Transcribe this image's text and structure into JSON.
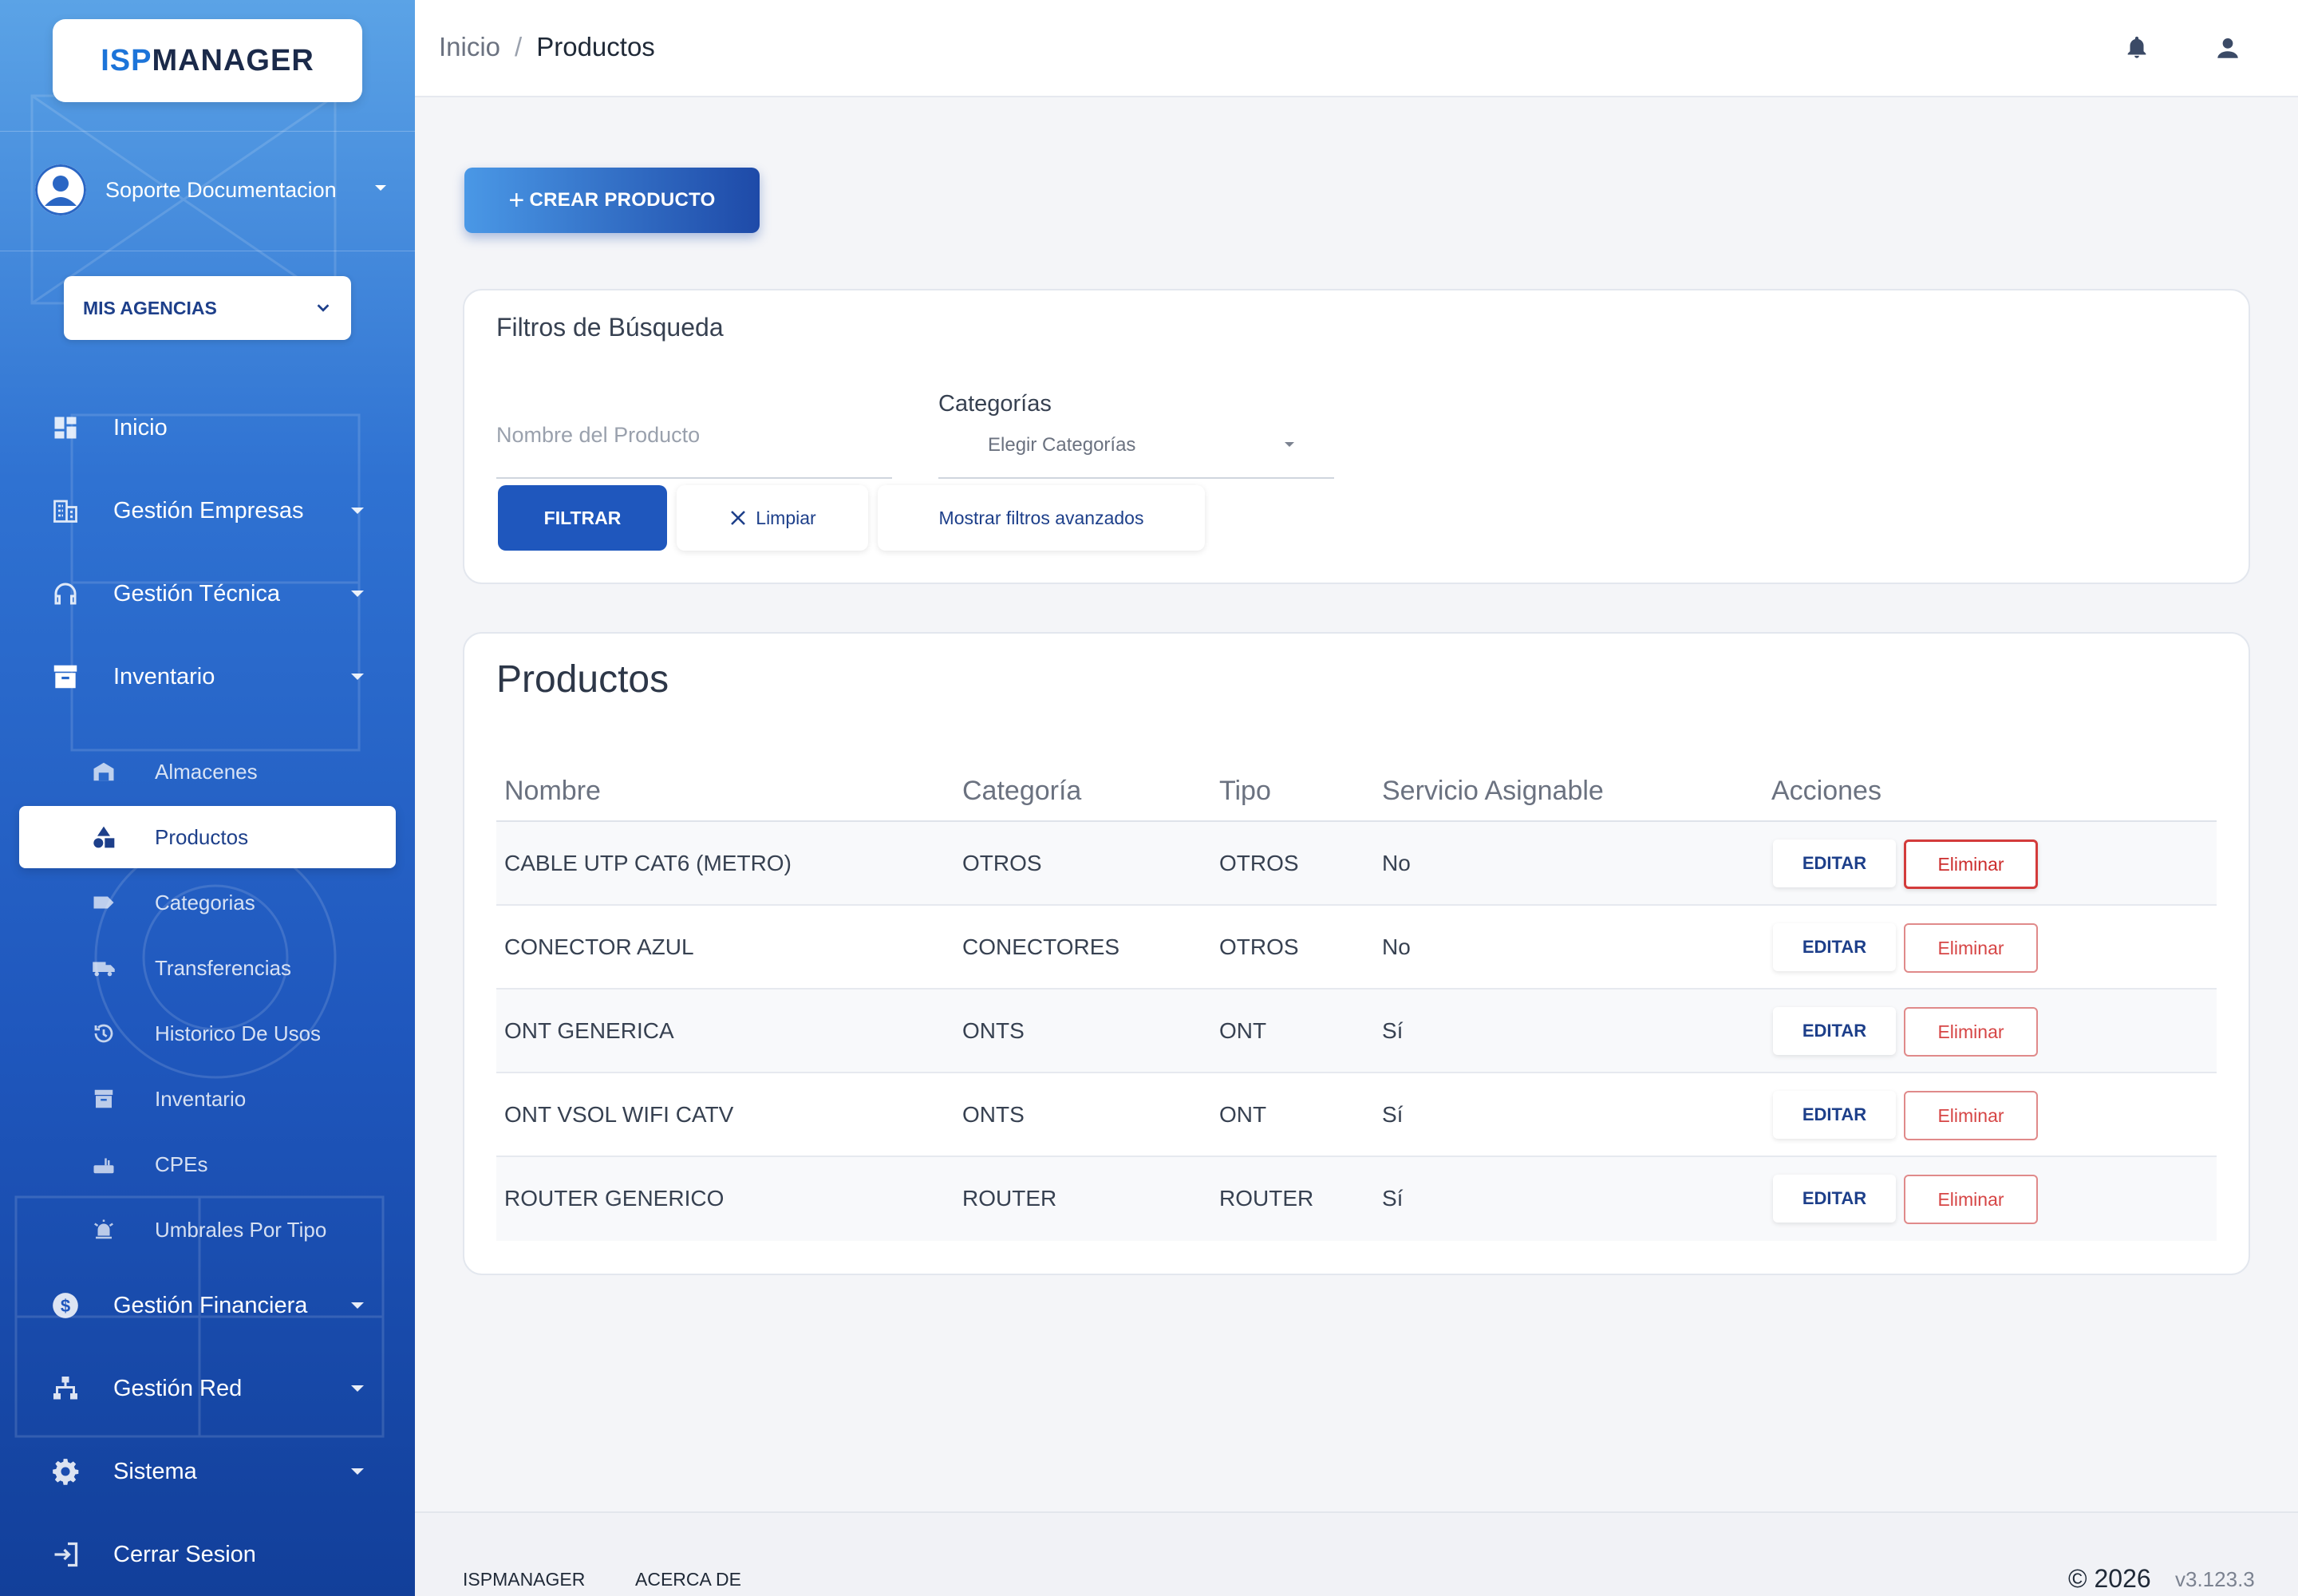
{
  "brand": {
    "logo_part1": "ISP",
    "logo_part2": "MANAGER"
  },
  "user": {
    "name": "Soporte Documentacion"
  },
  "agency": {
    "label": "MIS AGENCIAS"
  },
  "nav": {
    "inicio": "Inicio",
    "empresas": "Gestión Empresas",
    "tecnica": "Gestión Técnica",
    "inventario": "Inventario",
    "sub": {
      "almacenes": "Almacenes",
      "productos": "Productos",
      "categorias": "Categorias",
      "transferencias": "Transferencias",
      "historico": "Historico De Usos",
      "inventario": "Inventario",
      "cpes": "CPEs",
      "umbrales": "Umbrales Por Tipo"
    },
    "financiera": "Gestión Financiera",
    "red": "Gestión Red",
    "sistema": "Sistema",
    "logout": "Cerrar Sesion"
  },
  "header": {
    "crumb_home": "Inicio",
    "crumb_sep": "/",
    "crumb_current": "Productos"
  },
  "actions": {
    "create_label": "CREAR PRODUCTO"
  },
  "filters": {
    "title": "Filtros de Búsqueda",
    "name_placeholder": "Nombre del Producto",
    "categories_label": "Categorías",
    "categories_placeholder": "Elegir Categorías",
    "filter_btn": "FILTRAR",
    "clear_btn": "Limpiar",
    "advanced_btn": "Mostrar filtros avanzados"
  },
  "products": {
    "title": "Productos",
    "columns": [
      "Nombre",
      "Categoría",
      "Tipo",
      "Servicio Asignable",
      "Acciones"
    ],
    "edit_label": "EDITAR",
    "delete_label": "Eliminar",
    "rows": [
      {
        "nombre": "CABLE UTP CAT6 (METRO)",
        "categoria": "OTROS",
        "tipo": "OTROS",
        "servicio": "No"
      },
      {
        "nombre": "CONECTOR AZUL",
        "categoria": "CONECTORES",
        "tipo": "OTROS",
        "servicio": "No"
      },
      {
        "nombre": "ONT GENERICA",
        "categoria": "ONTS",
        "tipo": "ONT",
        "servicio": "Sí"
      },
      {
        "nombre": "ONT VSOL WIFI CATV",
        "categoria": "ONTS",
        "tipo": "ONT",
        "servicio": "Sí"
      },
      {
        "nombre": "ROUTER GENERICO",
        "categoria": "ROUTER",
        "tipo": "ROUTER",
        "servicio": "Sí"
      }
    ]
  },
  "footer": {
    "link1": "ISPMANAGER",
    "link2": "ACERCA DE",
    "copyright": "© 2026",
    "version": "v3.123.3"
  },
  "icons": [
    "dashboard-icon",
    "building-icon",
    "headset-icon",
    "archive-icon",
    "warehouse-icon",
    "shapes-icon",
    "tag-icon",
    "truck-icon",
    "history-icon",
    "router-icon",
    "alarm-icon",
    "dollar-icon",
    "network-icon",
    "gear-icon",
    "logout-icon",
    "bell-icon",
    "user-icon"
  ],
  "colors": {
    "primary": "#1f57bd",
    "danger": "#d64545",
    "sidebar_top": "#5ba3e6",
    "sidebar_bottom": "#123f9a"
  }
}
